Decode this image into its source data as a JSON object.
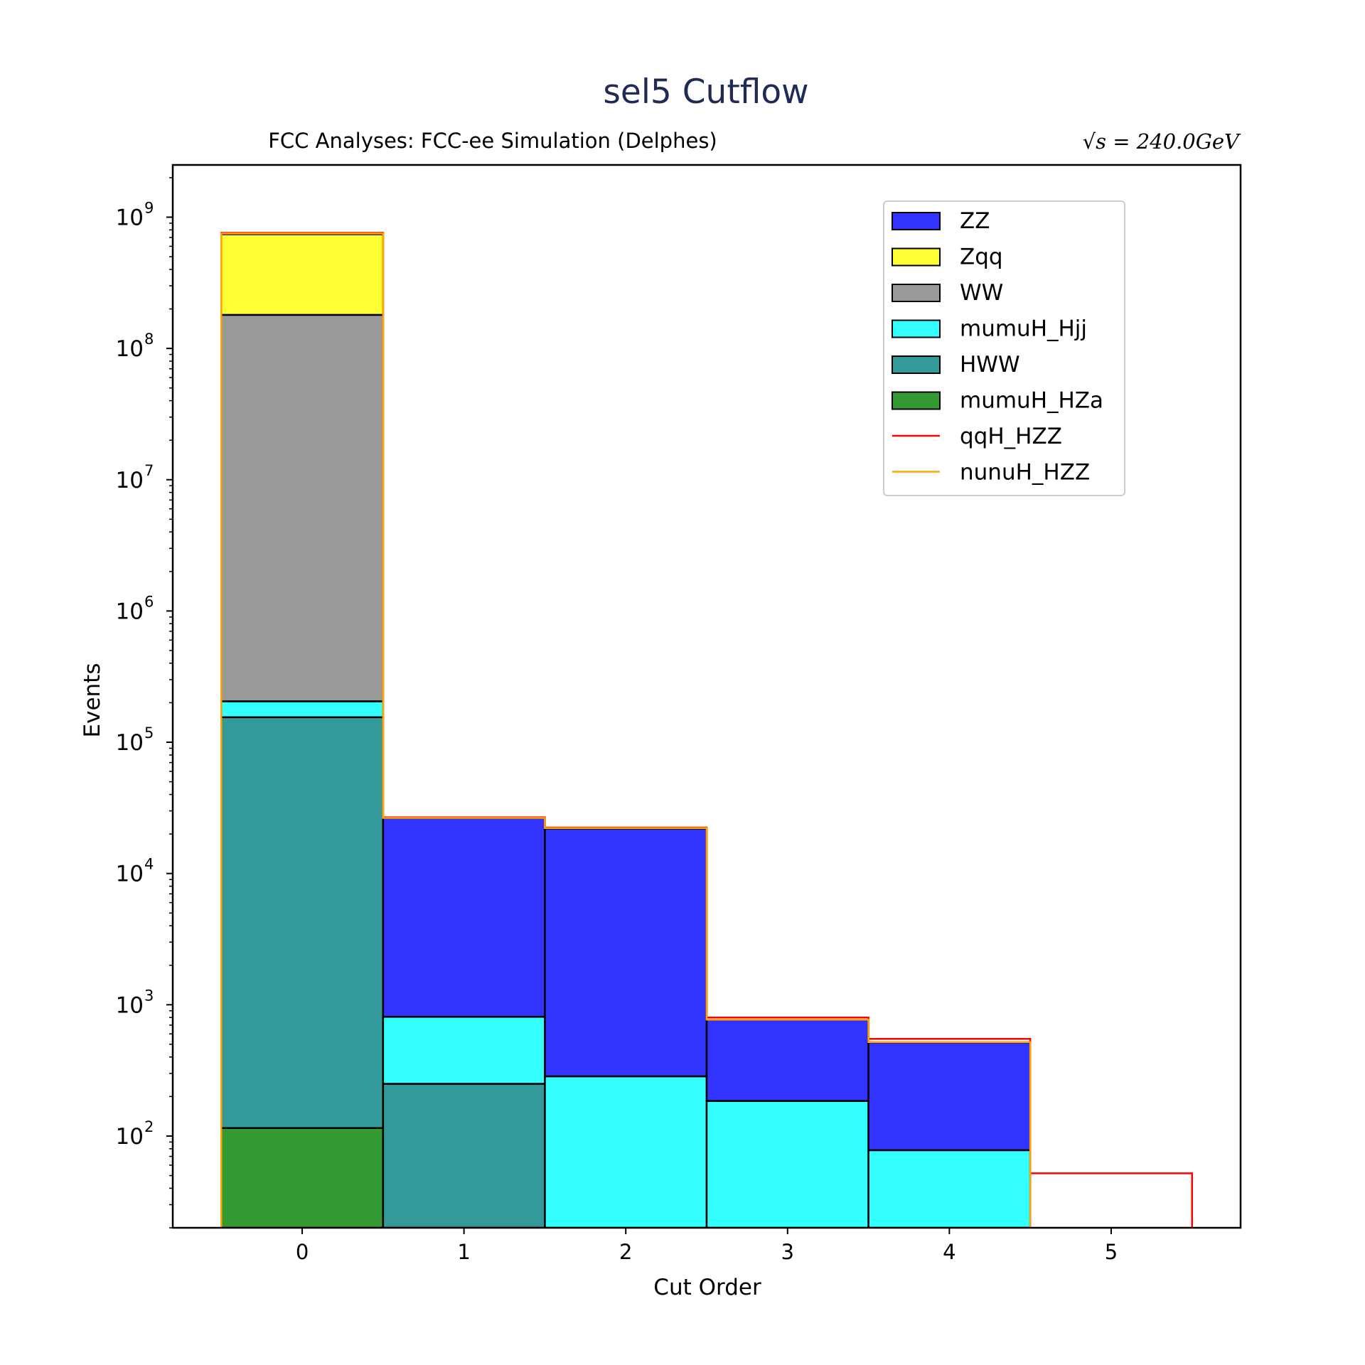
{
  "chart_data": {
    "type": "bar",
    "subtype": "stacked-step-histogram",
    "title": "sel5 Cutflow",
    "subtitle_left": "FCC Analyses: FCC-ee Simulation (Delphes)",
    "subtitle_right": "√s = 240.0GeV",
    "xlabel": "Cut Order",
    "ylabel": "Events",
    "xlim": [
      -0.8,
      5.8
    ],
    "ylim": [
      20,
      2500000000.0
    ],
    "yscale": "log",
    "grid": false,
    "legend_position": "top-right",
    "x": [
      0,
      1,
      2,
      3,
      4,
      5
    ],
    "x_tick_labels": [
      "0",
      "1",
      "2",
      "3",
      "4",
      "5"
    ],
    "y_ticks": [
      {
        "base": "10",
        "exp": "2"
      },
      {
        "base": "10",
        "exp": "3"
      },
      {
        "base": "10",
        "exp": "4"
      },
      {
        "base": "10",
        "exp": "5"
      },
      {
        "base": "10",
        "exp": "6"
      },
      {
        "base": "10",
        "exp": "7"
      },
      {
        "base": "10",
        "exp": "8"
      },
      {
        "base": "10",
        "exp": "9"
      }
    ],
    "series": [
      {
        "name": "mumuH_HZa",
        "kind": "stacked",
        "color": "#339933",
        "values": [
          115,
          0,
          0,
          0,
          0,
          0
        ]
      },
      {
        "name": "HWW",
        "kind": "stacked",
        "color": "#339999",
        "values": [
          155000,
          250,
          0,
          0,
          0,
          0
        ]
      },
      {
        "name": "mumuH_Hjj",
        "kind": "stacked",
        "color": "#33ffff",
        "values": [
          50000,
          560,
          285,
          185,
          78,
          0
        ]
      },
      {
        "name": "WW",
        "kind": "stacked",
        "color": "#999999",
        "values": [
          180000000,
          0,
          0,
          0,
          0,
          0
        ]
      },
      {
        "name": "Zqq",
        "kind": "stacked",
        "color": "#ffff33",
        "values": [
          560000000,
          0,
          0,
          0,
          0,
          0
        ]
      },
      {
        "name": "ZZ",
        "kind": "stacked",
        "color": "#3333ff",
        "values": [
          0,
          25700,
          21700,
          585,
          440,
          0
        ]
      },
      {
        "name": "qqH_HZZ",
        "kind": "line",
        "color": "#ff0000",
        "values": [
          760000000,
          26800,
          22400,
          800,
          550,
          52
        ]
      },
      {
        "name": "nunuH_HZZ",
        "kind": "line",
        "color": "#ffa500",
        "values": [
          750000000,
          26500,
          22200,
          770,
          520,
          20
        ]
      }
    ],
    "legend": [
      {
        "name": "ZZ",
        "kind": "patch",
        "color": "#3333ff"
      },
      {
        "name": "Zqq",
        "kind": "patch",
        "color": "#ffff33"
      },
      {
        "name": "WW",
        "kind": "patch",
        "color": "#999999"
      },
      {
        "name": "mumuH_Hjj",
        "kind": "patch",
        "color": "#33ffff"
      },
      {
        "name": "HWW",
        "kind": "patch",
        "color": "#339999"
      },
      {
        "name": "mumuH_HZa",
        "kind": "patch",
        "color": "#339933"
      },
      {
        "name": "qqH_HZZ",
        "kind": "line",
        "color": "#ff0000"
      },
      {
        "name": "nunuH_HZZ",
        "kind": "line",
        "color": "#ffa500"
      }
    ]
  }
}
